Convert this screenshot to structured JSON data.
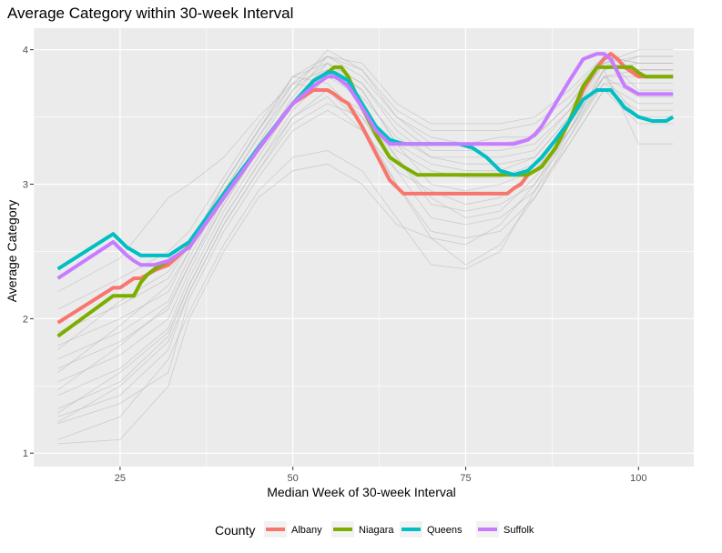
{
  "chart_data": {
    "type": "line",
    "title": "Average Category within 30-week Interval",
    "xlabel": "Median Week of 30-week Interval",
    "ylabel": "Average Category",
    "xlim": [
      12.5,
      108
    ],
    "ylim": [
      0.9,
      4.16
    ],
    "x_ticks": [
      25,
      50,
      75,
      100
    ],
    "y_ticks": [
      1,
      2,
      3,
      4
    ],
    "grid": true,
    "legend": {
      "title": "County",
      "position": "bottom"
    },
    "series": [
      {
        "name": "Albany",
        "color": "#F8766D",
        "x": [
          16,
          24,
          25,
          27,
          28,
          29,
          30,
          32,
          35,
          40,
          45,
          50,
          53,
          54,
          55,
          56,
          57,
          58,
          60,
          62,
          64,
          66,
          68,
          70,
          72,
          74,
          76,
          78,
          80,
          81,
          82,
          83,
          84,
          86,
          88,
          90,
          92,
          94,
          95,
          96,
          97,
          98,
          100,
          102,
          104,
          105
        ],
        "values": [
          1.97,
          2.23,
          2.23,
          2.3,
          2.3,
          2.33,
          2.36,
          2.4,
          2.54,
          2.91,
          3.27,
          3.6,
          3.7,
          3.7,
          3.7,
          3.67,
          3.63,
          3.6,
          3.43,
          3.23,
          3.03,
          2.93,
          2.93,
          2.93,
          2.93,
          2.93,
          2.93,
          2.93,
          2.93,
          2.93,
          2.97,
          3.0,
          3.07,
          3.13,
          3.27,
          3.47,
          3.7,
          3.87,
          3.93,
          3.97,
          3.93,
          3.87,
          3.8,
          3.8,
          3.8,
          3.8
        ]
      },
      {
        "name": "Niagara",
        "color": "#7CAE00",
        "x": [
          16,
          24,
          26,
          27,
          28,
          29,
          30,
          32,
          35,
          40,
          45,
          50,
          53,
          55,
          56,
          57,
          58,
          60,
          62,
          64,
          66,
          68,
          70,
          72,
          74,
          76,
          78,
          80,
          82,
          84,
          86,
          88,
          90,
          92,
          94,
          96,
          98,
          99,
          100,
          101,
          102,
          104,
          105
        ],
        "values": [
          1.87,
          2.17,
          2.17,
          2.17,
          2.27,
          2.33,
          2.37,
          2.43,
          2.53,
          2.9,
          3.26,
          3.6,
          3.77,
          3.83,
          3.87,
          3.87,
          3.8,
          3.57,
          3.37,
          3.2,
          3.13,
          3.07,
          3.07,
          3.07,
          3.07,
          3.07,
          3.07,
          3.07,
          3.07,
          3.07,
          3.13,
          3.27,
          3.47,
          3.73,
          3.87,
          3.87,
          3.87,
          3.87,
          3.83,
          3.8,
          3.8,
          3.8,
          3.8
        ]
      },
      {
        "name": "Queens",
        "color": "#00BFC4",
        "x": [
          16,
          24,
          26,
          27,
          28,
          30,
          32,
          35,
          40,
          45,
          50,
          53,
          55,
          56,
          57,
          58,
          60,
          62,
          64,
          66,
          68,
          70,
          72,
          74,
          76,
          78,
          80,
          82,
          84,
          86,
          88,
          90,
          92,
          94,
          96,
          98,
          100,
          102,
          104,
          105
        ],
        "values": [
          2.37,
          2.63,
          2.53,
          2.5,
          2.47,
          2.47,
          2.47,
          2.57,
          2.93,
          3.27,
          3.6,
          3.77,
          3.83,
          3.83,
          3.8,
          3.77,
          3.6,
          3.43,
          3.33,
          3.3,
          3.3,
          3.3,
          3.3,
          3.3,
          3.27,
          3.2,
          3.1,
          3.07,
          3.1,
          3.2,
          3.33,
          3.47,
          3.63,
          3.7,
          3.7,
          3.57,
          3.5,
          3.47,
          3.47,
          3.5
        ]
      },
      {
        "name": "Suffolk",
        "color": "#C77CFF",
        "x": [
          16,
          24,
          26,
          27,
          28,
          30,
          32,
          35,
          40,
          45,
          50,
          53,
          55,
          56,
          57,
          58,
          60,
          62,
          64,
          66,
          68,
          70,
          72,
          74,
          76,
          78,
          80,
          82,
          84,
          85,
          86,
          88,
          90,
          92,
          94,
          95,
          96,
          97,
          98,
          100,
          102,
          104,
          105
        ],
        "values": [
          2.3,
          2.57,
          2.47,
          2.43,
          2.4,
          2.4,
          2.43,
          2.53,
          2.9,
          3.26,
          3.6,
          3.73,
          3.8,
          3.8,
          3.77,
          3.73,
          3.57,
          3.4,
          3.3,
          3.3,
          3.3,
          3.3,
          3.3,
          3.3,
          3.3,
          3.3,
          3.3,
          3.3,
          3.33,
          3.37,
          3.43,
          3.6,
          3.77,
          3.93,
          3.97,
          3.97,
          3.93,
          3.83,
          3.73,
          3.67,
          3.67,
          3.67,
          3.67
        ]
      }
    ],
    "background_series": [
      {
        "x": [
          16,
          25,
          32,
          35,
          40,
          45,
          50,
          55,
          60,
          65,
          70,
          75,
          80,
          85,
          90,
          95,
          100,
          105
        ],
        "values": [
          1.22,
          1.37,
          1.6,
          2.15,
          2.65,
          3.05,
          3.4,
          3.55,
          3.4,
          3.1,
          2.95,
          2.85,
          2.9,
          3.1,
          3.45,
          3.8,
          3.85,
          3.85
        ]
      },
      {
        "x": [
          16,
          25,
          32,
          35,
          40,
          45,
          50,
          55,
          60,
          65,
          70,
          75,
          80,
          85,
          90,
          95,
          100,
          105
        ],
        "values": [
          1.07,
          1.1,
          1.5,
          2.0,
          2.5,
          2.9,
          3.1,
          3.15,
          3.0,
          2.7,
          2.6,
          2.55,
          2.7,
          3.0,
          3.4,
          3.75,
          3.75,
          3.75
        ]
      },
      {
        "x": [
          16,
          25,
          32,
          35,
          40,
          45,
          50,
          55,
          60,
          65,
          70,
          75,
          80,
          85,
          90,
          95,
          100,
          105
        ],
        "values": [
          1.1,
          1.27,
          1.7,
          2.05,
          2.55,
          2.95,
          3.2,
          3.25,
          3.1,
          2.75,
          2.4,
          2.37,
          2.5,
          2.95,
          3.4,
          3.85,
          3.9,
          3.9
        ]
      },
      {
        "x": [
          16,
          25,
          32,
          35,
          40,
          45,
          50,
          55,
          60,
          65,
          70,
          75,
          80,
          85,
          90,
          95,
          100,
          105
        ],
        "values": [
          1.27,
          1.43,
          1.77,
          2.2,
          2.7,
          3.1,
          3.5,
          3.7,
          3.55,
          3.25,
          3.1,
          3.05,
          3.05,
          3.15,
          3.45,
          3.8,
          3.8,
          3.8
        ]
      },
      {
        "x": [
          16,
          25,
          32,
          35,
          40,
          45,
          50,
          55,
          60,
          65,
          70,
          75,
          80,
          85,
          90,
          95,
          100,
          105
        ],
        "values": [
          1.33,
          1.53,
          1.87,
          2.25,
          2.75,
          3.15,
          3.55,
          3.8,
          3.65,
          3.35,
          3.2,
          3.15,
          3.15,
          3.2,
          3.5,
          3.85,
          3.95,
          3.95
        ]
      },
      {
        "x": [
          16,
          25,
          32,
          35,
          40,
          45,
          50,
          55,
          60,
          65,
          70,
          75,
          80,
          85,
          90,
          95,
          100,
          105
        ],
        "values": [
          1.43,
          1.63,
          1.93,
          2.3,
          2.8,
          3.2,
          3.6,
          3.9,
          3.75,
          3.45,
          3.25,
          3.25,
          3.25,
          3.3,
          3.55,
          3.9,
          4.0,
          4.0
        ]
      },
      {
        "x": [
          16,
          25,
          32,
          35,
          40,
          45,
          50,
          55,
          60,
          65,
          70,
          75,
          80,
          85,
          90,
          95,
          100,
          105
        ],
        "values": [
          1.53,
          1.73,
          2.0,
          2.35,
          2.85,
          3.25,
          3.65,
          3.95,
          3.8,
          3.5,
          3.35,
          3.3,
          3.35,
          3.35,
          3.6,
          3.9,
          3.95,
          3.95
        ]
      },
      {
        "x": [
          16,
          25,
          32,
          35,
          40,
          45,
          50,
          55,
          60,
          65,
          70,
          75,
          80,
          85,
          90,
          95,
          100,
          105
        ],
        "values": [
          1.63,
          1.83,
          2.07,
          2.4,
          2.9,
          3.3,
          3.7,
          4.0,
          3.85,
          3.55,
          3.4,
          3.4,
          3.4,
          3.45,
          3.65,
          3.95,
          3.9,
          3.9
        ]
      },
      {
        "x": [
          16,
          25,
          32,
          35,
          40,
          45,
          50,
          55,
          60,
          65,
          70,
          75,
          80,
          85,
          90,
          95,
          100,
          105
        ],
        "values": [
          1.7,
          1.9,
          2.13,
          2.45,
          2.95,
          3.35,
          3.75,
          3.95,
          3.9,
          3.6,
          3.45,
          3.45,
          3.45,
          3.5,
          3.7,
          3.95,
          3.7,
          3.7
        ]
      },
      {
        "x": [
          16,
          25,
          32,
          35,
          40,
          45,
          50,
          55,
          60,
          65,
          70,
          75,
          80,
          85,
          90,
          95,
          100,
          105
        ],
        "values": [
          1.8,
          2.0,
          2.2,
          2.5,
          3.0,
          3.4,
          3.8,
          3.9,
          3.7,
          3.3,
          3.0,
          2.95,
          3.0,
          3.1,
          3.4,
          3.8,
          3.65,
          3.65
        ]
      },
      {
        "x": [
          16,
          25,
          32,
          35,
          40,
          45,
          50,
          55,
          60,
          65,
          70,
          75,
          80,
          85,
          90,
          95,
          100,
          105
        ],
        "values": [
          1.9,
          2.1,
          2.3,
          2.55,
          3.0,
          3.4,
          3.75,
          3.85,
          3.6,
          3.2,
          2.85,
          2.8,
          2.85,
          3.0,
          3.35,
          3.75,
          3.6,
          3.6
        ]
      },
      {
        "x": [
          16,
          25,
          32,
          35,
          40,
          45,
          50,
          55,
          60,
          65,
          70,
          75,
          80,
          85,
          90,
          95,
          100,
          105
        ],
        "values": [
          2.07,
          2.3,
          2.5,
          2.65,
          3.05,
          3.45,
          3.8,
          3.75,
          3.5,
          3.1,
          2.75,
          2.7,
          2.75,
          2.95,
          3.3,
          3.7,
          3.55,
          3.55
        ]
      },
      {
        "x": [
          16,
          25,
          32,
          35,
          40,
          45,
          50,
          55,
          60,
          65,
          70,
          75,
          80,
          85,
          90,
          95,
          100,
          105
        ],
        "values": [
          2.2,
          2.45,
          2.9,
          3.0,
          3.2,
          3.5,
          3.75,
          3.7,
          3.45,
          3.0,
          2.65,
          2.6,
          2.65,
          2.9,
          3.3,
          3.7,
          3.45,
          3.45
        ]
      },
      {
        "x": [
          16,
          25,
          32,
          35,
          40,
          45,
          50,
          55,
          60,
          65,
          70,
          75,
          80,
          85,
          90,
          95,
          100,
          105
        ],
        "values": [
          1.23,
          1.5,
          1.83,
          2.2,
          2.7,
          3.1,
          3.45,
          3.6,
          3.5,
          3.2,
          2.9,
          2.75,
          2.8,
          3.05,
          3.4,
          3.85,
          3.3,
          3.3
        ]
      },
      {
        "x": [
          16,
          25,
          32,
          35,
          40,
          45,
          50,
          55,
          60,
          65,
          70,
          75,
          80,
          85,
          90,
          95,
          100,
          105
        ],
        "values": [
          1.3,
          1.6,
          1.9,
          2.25,
          2.75,
          3.15,
          3.5,
          3.65,
          3.4,
          3.0,
          2.6,
          2.4,
          2.55,
          2.9,
          3.35,
          3.8,
          3.5,
          3.5
        ]
      },
      {
        "x": [
          16,
          25,
          32,
          35,
          40,
          45,
          50,
          55,
          60,
          65,
          70,
          75,
          80,
          85,
          90,
          95,
          100,
          105
        ],
        "values": [
          1.47,
          1.8,
          2.1,
          2.4,
          2.85,
          3.25,
          3.6,
          3.85,
          3.7,
          3.3,
          3.15,
          3.1,
          3.1,
          3.2,
          3.5,
          3.9,
          3.85,
          3.85
        ]
      },
      {
        "x": [
          16,
          25,
          32,
          35,
          40,
          45,
          50,
          55,
          60,
          65,
          70,
          75,
          80,
          85,
          90,
          95,
          100,
          105
        ],
        "values": [
          1.6,
          1.95,
          2.25,
          2.5,
          2.95,
          3.35,
          3.7,
          3.9,
          3.75,
          3.4,
          3.2,
          3.2,
          3.2,
          3.25,
          3.55,
          3.95,
          3.85,
          3.85
        ]
      },
      {
        "x": [
          16,
          25,
          32,
          35,
          40,
          45,
          50,
          55,
          60,
          65,
          70,
          75,
          80,
          85,
          90,
          95,
          100,
          105
        ],
        "values": [
          1.77,
          2.13,
          2.35,
          2.55,
          3.0,
          3.4,
          3.8,
          3.95,
          3.85,
          3.5,
          3.3,
          3.3,
          3.3,
          3.35,
          3.6,
          3.95,
          3.9,
          3.9
        ]
      }
    ]
  },
  "legend": {
    "title": "County",
    "items": [
      "Albany",
      "Niagara",
      "Queens",
      "Suffolk"
    ]
  }
}
